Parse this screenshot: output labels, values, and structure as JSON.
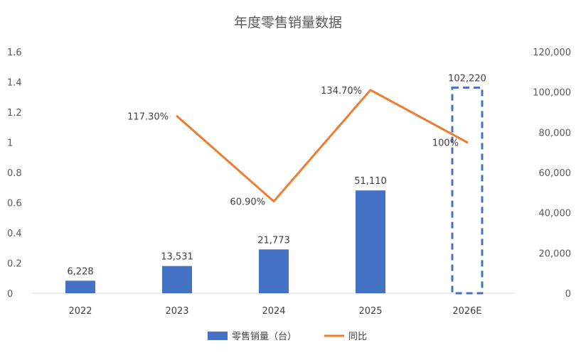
{
  "chart_data": {
    "title": "年度零售销量数据",
    "categories": [
      "2022",
      "2023",
      "2024",
      "2025",
      "2026E"
    ],
    "left_axis": {
      "min": 0,
      "max": 1.6,
      "step": 0.2,
      "ticks": [
        "0",
        "0.2",
        "0.4",
        "0.6",
        "0.8",
        "1",
        "1.2",
        "1.4",
        "1.6"
      ]
    },
    "right_axis": {
      "min": 0,
      "max": 120000,
      "step": 20000,
      "ticks": [
        "0",
        "20,000",
        "40,000",
        "60,000",
        "80,000",
        "100,000",
        "120,000"
      ]
    },
    "series": [
      {
        "name": "零售销量（台）",
        "type": "bar",
        "axis": "right",
        "color": "#4472C4",
        "values": [
          6228,
          13531,
          21773,
          51110,
          102220
        ],
        "labels": [
          "6,228",
          "13,531",
          "21,773",
          "51,110",
          "102,220"
        ],
        "dashed_last": true
      },
      {
        "name": "同比",
        "type": "line",
        "axis": "left",
        "color": "#ED7D31",
        "values": [
          null,
          1.173,
          0.609,
          1.347,
          1.0
        ],
        "labels": [
          null,
          "117.30%",
          "60.90%",
          "134.70%",
          "100%"
        ]
      }
    ],
    "legend_position": "bottom",
    "grid": false
  }
}
